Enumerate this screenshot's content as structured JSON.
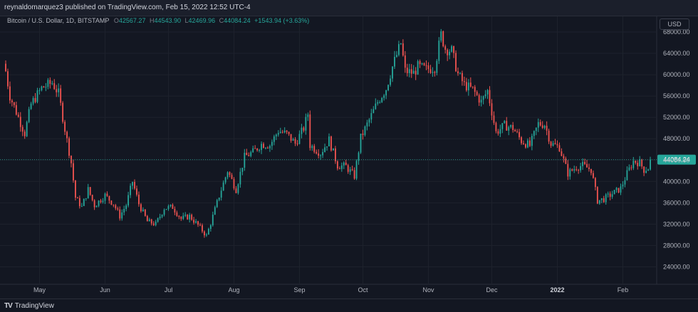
{
  "header": {
    "published": "reynaldomarquez3 published on TradingView.com, Feb 15, 2022 12:52 UTC-4"
  },
  "legend": {
    "symbol": "Bitcoin / U.S. Dollar, 1D, BITSTAMP",
    "open_label": "O",
    "open": "42567.27",
    "high_label": "H",
    "high": "44543.90",
    "low_label": "L",
    "low": "42469.96",
    "close_label": "C",
    "close": "44084.24",
    "change": "+1543.94 (+3.63%)"
  },
  "currency": "USD",
  "footer": {
    "brand": "TradingView"
  },
  "colors": {
    "up": "#26a69a",
    "down": "#ef5350",
    "background": "#131722",
    "grid": "#1e222d",
    "last_price": "#26a69a"
  },
  "chart_data": {
    "type": "candlestick",
    "symbol": "BTCUSD",
    "interval": "1D",
    "exchange": "BITSTAMP",
    "y_ticks": [
      "24000.00",
      "28000.00",
      "32000.00",
      "36000.00",
      "40000.00",
      "44000.00",
      "48000.00",
      "52000.00",
      "56000.00",
      "60000.00",
      "64000.00",
      "68000.00"
    ],
    "ylim": [
      21000,
      70000
    ],
    "last_price": "44084.24",
    "x_ticks": [
      {
        "label": "May",
        "date": "2021-05-01",
        "bold": false
      },
      {
        "label": "Jun",
        "date": "2021-06-01",
        "bold": false
      },
      {
        "label": "Jul",
        "date": "2021-07-01",
        "bold": false
      },
      {
        "label": "Aug",
        "date": "2021-08-01",
        "bold": false
      },
      {
        "label": "Sep",
        "date": "2021-09-01",
        "bold": false
      },
      {
        "label": "Oct",
        "date": "2021-10-01",
        "bold": false
      },
      {
        "label": "Nov",
        "date": "2021-11-01",
        "bold": false
      },
      {
        "label": "Dec",
        "date": "2021-12-01",
        "bold": false
      },
      {
        "label": "2022",
        "date": "2022-01-01",
        "bold": true
      },
      {
        "label": "Feb",
        "date": "2022-02-01",
        "bold": false
      }
    ],
    "x_range": [
      "2021-04-15",
      "2022-02-15"
    ],
    "closes": [
      {
        "date": "2021-04-15",
        "close": 63000
      },
      {
        "date": "2021-04-18",
        "close": 56000
      },
      {
        "date": "2021-04-22",
        "close": 52000
      },
      {
        "date": "2021-04-25",
        "close": 49000
      },
      {
        "date": "2021-04-28",
        "close": 54500
      },
      {
        "date": "2021-05-03",
        "close": 57500
      },
      {
        "date": "2021-05-08",
        "close": 58500
      },
      {
        "date": "2021-05-11",
        "close": 56500
      },
      {
        "date": "2021-05-14",
        "close": 49800
      },
      {
        "date": "2021-05-17",
        "close": 43500
      },
      {
        "date": "2021-05-19",
        "close": 37000
      },
      {
        "date": "2021-05-22",
        "close": 35200
      },
      {
        "date": "2021-05-25",
        "close": 38500
      },
      {
        "date": "2021-05-28",
        "close": 35500
      },
      {
        "date": "2021-06-02",
        "close": 37400
      },
      {
        "date": "2021-06-06",
        "close": 35800
      },
      {
        "date": "2021-06-09",
        "close": 33500
      },
      {
        "date": "2021-06-12",
        "close": 35600
      },
      {
        "date": "2021-06-15",
        "close": 40000
      },
      {
        "date": "2021-06-18",
        "close": 35800
      },
      {
        "date": "2021-06-22",
        "close": 32500
      },
      {
        "date": "2021-06-26",
        "close": 32000
      },
      {
        "date": "2021-06-30",
        "close": 35000
      },
      {
        "date": "2021-07-04",
        "close": 35200
      },
      {
        "date": "2021-07-08",
        "close": 33000
      },
      {
        "date": "2021-07-12",
        "close": 33500
      },
      {
        "date": "2021-07-16",
        "close": 31800
      },
      {
        "date": "2021-07-20",
        "close": 29800
      },
      {
        "date": "2021-07-22",
        "close": 32200
      },
      {
        "date": "2021-07-26",
        "close": 37300
      },
      {
        "date": "2021-07-30",
        "close": 42000
      },
      {
        "date": "2021-08-03",
        "close": 38500
      },
      {
        "date": "2021-08-07",
        "close": 44600
      },
      {
        "date": "2021-08-11",
        "close": 45500
      },
      {
        "date": "2021-08-15",
        "close": 47000
      },
      {
        "date": "2021-08-19",
        "close": 46800
      },
      {
        "date": "2021-08-23",
        "close": 49500
      },
      {
        "date": "2021-08-27",
        "close": 48900
      },
      {
        "date": "2021-08-31",
        "close": 47100
      },
      {
        "date": "2021-09-04",
        "close": 50000
      },
      {
        "date": "2021-09-06",
        "close": 52700
      },
      {
        "date": "2021-09-07",
        "close": 46800
      },
      {
        "date": "2021-09-12",
        "close": 45300
      },
      {
        "date": "2021-09-16",
        "close": 47800
      },
      {
        "date": "2021-09-20",
        "close": 43000
      },
      {
        "date": "2021-09-24",
        "close": 42800
      },
      {
        "date": "2021-09-28",
        "close": 41000
      },
      {
        "date": "2021-10-01",
        "close": 48200
      },
      {
        "date": "2021-10-05",
        "close": 51500
      },
      {
        "date": "2021-10-09",
        "close": 54900
      },
      {
        "date": "2021-10-13",
        "close": 57400
      },
      {
        "date": "2021-10-16",
        "close": 61500
      },
      {
        "date": "2021-10-20",
        "close": 65900
      },
      {
        "date": "2021-10-22",
        "close": 60700
      },
      {
        "date": "2021-10-26",
        "close": 60300
      },
      {
        "date": "2021-10-28",
        "close": 61500
      },
      {
        "date": "2021-11-01",
        "close": 61000
      },
      {
        "date": "2021-11-05",
        "close": 61400
      },
      {
        "date": "2021-11-08",
        "close": 67500
      },
      {
        "date": "2021-11-10",
        "close": 64900
      },
      {
        "date": "2021-11-13",
        "close": 64500
      },
      {
        "date": "2021-11-16",
        "close": 60100
      },
      {
        "date": "2021-11-19",
        "close": 58100
      },
      {
        "date": "2021-11-23",
        "close": 57200
      },
      {
        "date": "2021-11-27",
        "close": 54900
      },
      {
        "date": "2021-11-30",
        "close": 57000
      },
      {
        "date": "2021-12-04",
        "close": 49200
      },
      {
        "date": "2021-12-08",
        "close": 50500
      },
      {
        "date": "2021-12-12",
        "close": 50000
      },
      {
        "date": "2021-12-16",
        "close": 47600
      },
      {
        "date": "2021-12-20",
        "close": 46700
      },
      {
        "date": "2021-12-24",
        "close": 50800
      },
      {
        "date": "2021-12-27",
        "close": 50700
      },
      {
        "date": "2021-12-30",
        "close": 47100
      },
      {
        "date": "2022-01-03",
        "close": 46400
      },
      {
        "date": "2022-01-07",
        "close": 41500
      },
      {
        "date": "2022-01-11",
        "close": 42700
      },
      {
        "date": "2022-01-14",
        "close": 43000
      },
      {
        "date": "2022-01-18",
        "close": 42200
      },
      {
        "date": "2022-01-21",
        "close": 36400
      },
      {
        "date": "2022-01-24",
        "close": 36700
      },
      {
        "date": "2022-01-28",
        "close": 37700
      },
      {
        "date": "2022-02-01",
        "close": 38700
      },
      {
        "date": "2022-02-04",
        "close": 41500
      },
      {
        "date": "2022-02-07",
        "close": 43800
      },
      {
        "date": "2022-02-10",
        "close": 43500
      },
      {
        "date": "2022-02-12",
        "close": 42200
      },
      {
        "date": "2022-02-14",
        "close": 42550
      },
      {
        "date": "2022-02-15",
        "close": 44084.24
      }
    ]
  }
}
